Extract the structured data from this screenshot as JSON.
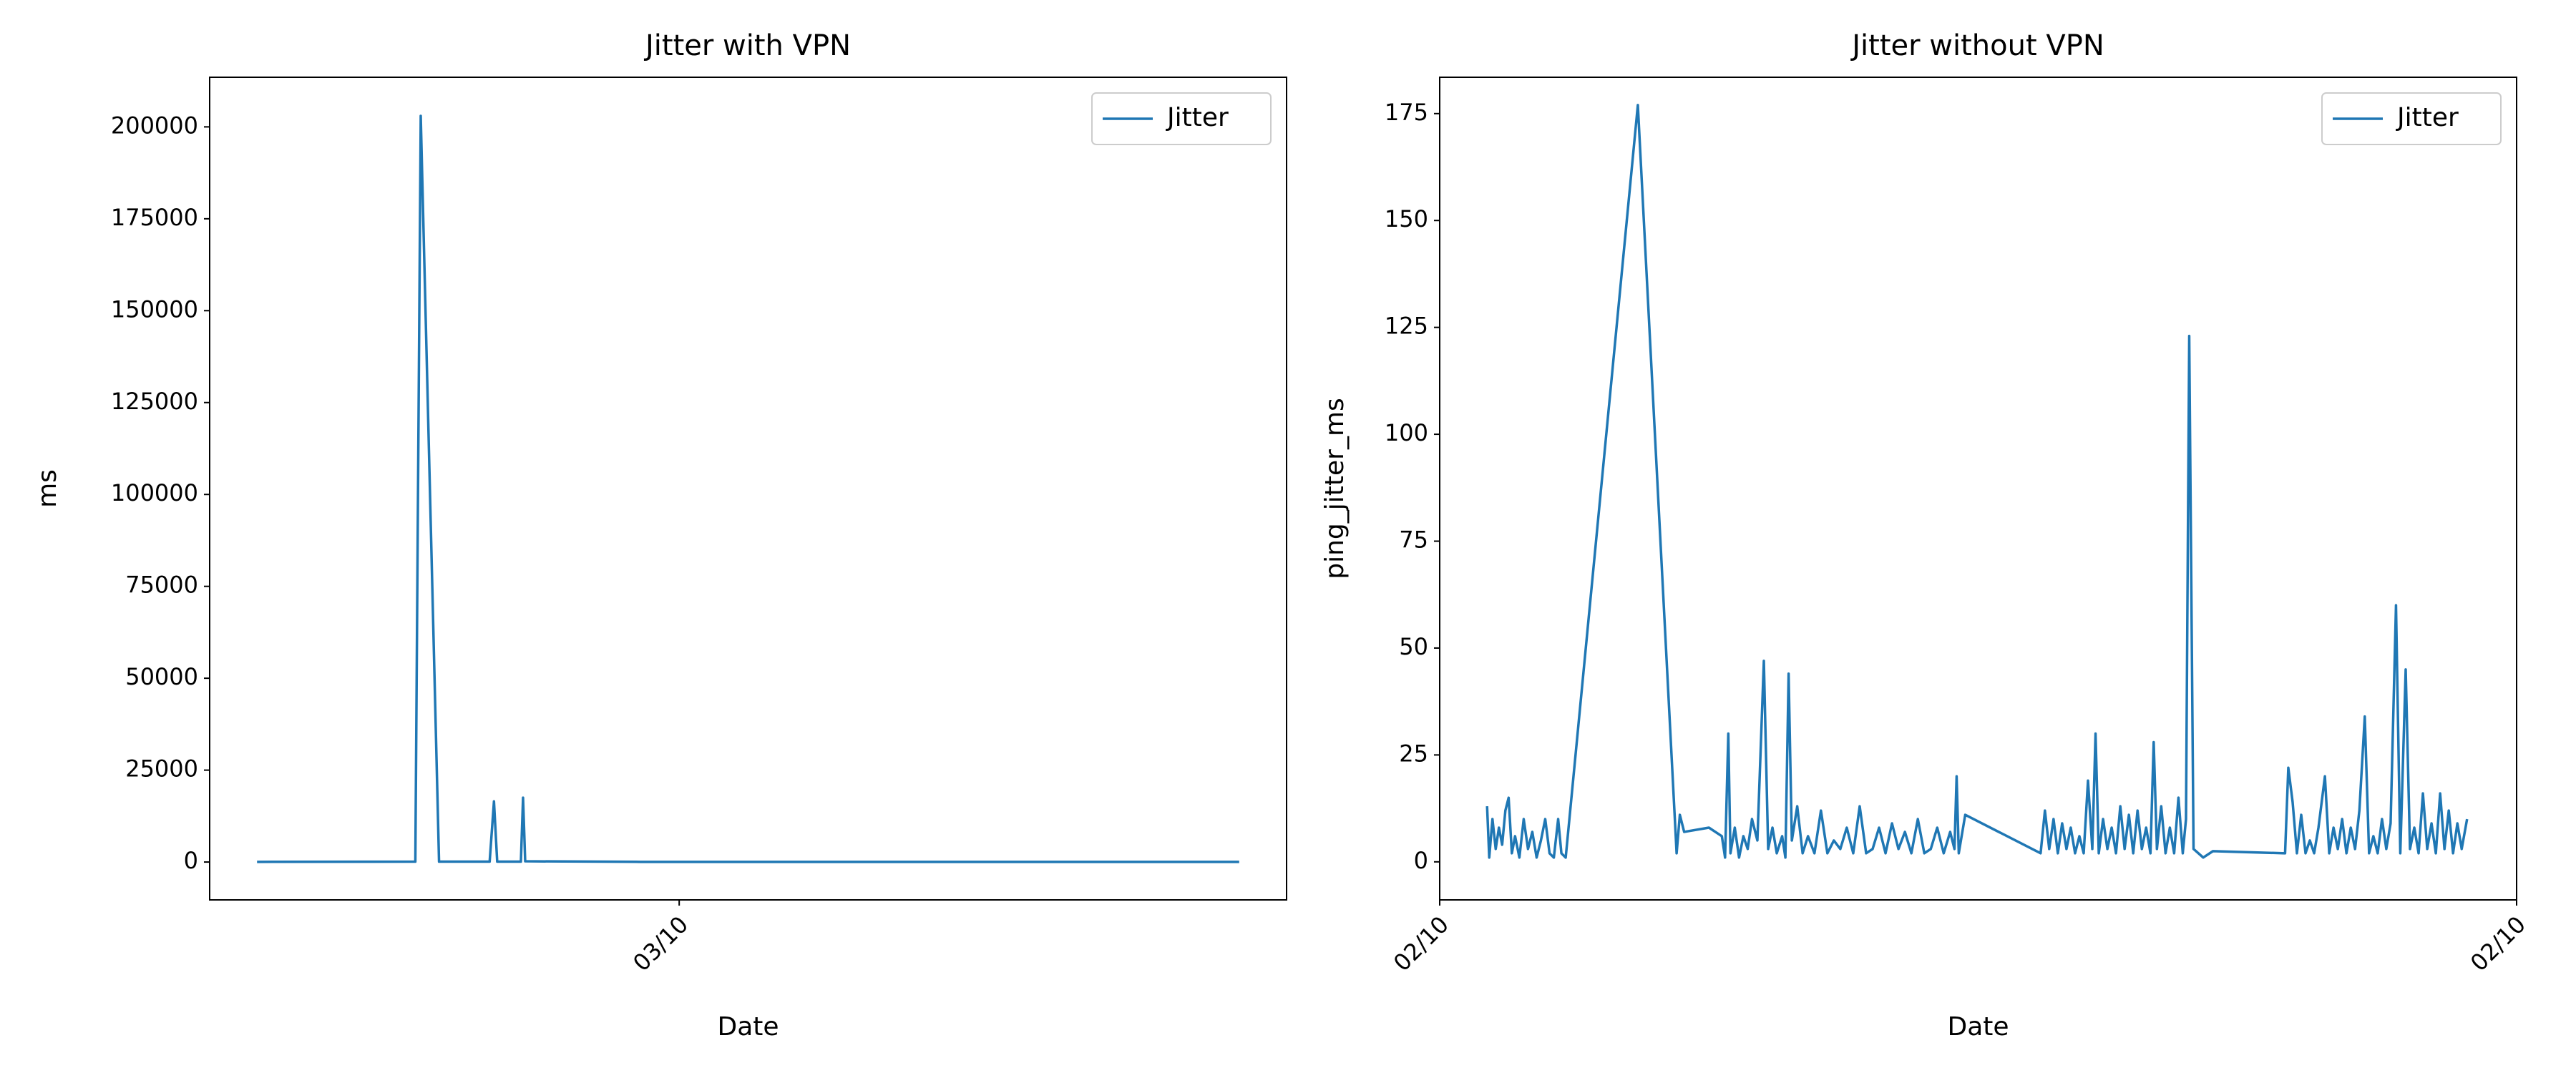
{
  "chart_data": [
    {
      "type": "line",
      "title": "Jitter with VPN",
      "xlabel": "Date",
      "ylabel": "ms",
      "x": [
        4.4,
        15,
        19.1,
        19.6,
        21.3,
        26.0,
        26.4,
        26.7,
        28.9,
        29.1,
        29.3,
        40,
        60,
        80,
        95.6
      ],
      "series": [
        {
          "name": "Jitter",
          "color": "#1f77b4",
          "values": [
            50,
            80,
            100,
            203000,
            100,
            100,
            16500,
            100,
            100,
            17500,
            200,
            50,
            50,
            50,
            50
          ]
        }
      ],
      "xlim": [
        0,
        100
      ],
      "xticks": [
        {
          "value": 43.6,
          "label": "03/10"
        }
      ],
      "ylim": [
        -10300,
        213500
      ],
      "yticks": [
        0,
        25000,
        50000,
        75000,
        100000,
        125000,
        150000,
        175000,
        200000
      ],
      "legend": "upper right"
    },
    {
      "type": "line",
      "title": "Jitter without VPN",
      "xlabel": "Date",
      "ylabel": "ping_jitter_ms",
      "x": [
        4.4,
        4.6,
        4.9,
        5.2,
        5.5,
        5.8,
        6.1,
        6.4,
        6.7,
        7.0,
        7.4,
        7.8,
        8.2,
        8.6,
        9.0,
        9.4,
        9.8,
        10.2,
        10.6,
        11.0,
        11.3,
        11.7,
        18.4,
        22.0,
        22.3,
        22.7,
        25.0,
        26.2,
        26.5,
        26.8,
        27.0,
        27.4,
        27.8,
        28.2,
        28.6,
        29.0,
        29.5,
        30.1,
        30.5,
        30.9,
        31.3,
        31.8,
        32.1,
        32.4,
        32.7,
        33.2,
        33.7,
        34.2,
        34.8,
        35.4,
        36.0,
        36.6,
        37.2,
        37.8,
        38.4,
        39.0,
        39.6,
        40.2,
        40.8,
        41.4,
        42.0,
        42.6,
        43.2,
        43.8,
        44.4,
        45.0,
        45.6,
        46.2,
        46.8,
        47.4,
        47.8,
        48.0,
        48.2,
        48.8,
        55.8,
        56.2,
        56.6,
        57.0,
        57.4,
        57.8,
        58.2,
        58.6,
        59.0,
        59.4,
        59.8,
        60.2,
        60.6,
        60.9,
        61.2,
        61.6,
        62.0,
        62.4,
        62.8,
        63.2,
        63.6,
        64.0,
        64.4,
        64.8,
        65.2,
        65.6,
        66.0,
        66.3,
        66.6,
        67.0,
        67.4,
        67.8,
        68.2,
        68.6,
        69.0,
        69.3,
        69.6,
        70.0,
        70.9,
        71.8,
        78.5,
        78.8,
        79.2,
        79.6,
        80.0,
        80.4,
        80.8,
        81.2,
        81.6,
        82.2,
        82.6,
        83.0,
        83.4,
        83.8,
        84.2,
        84.6,
        85.0,
        85.4,
        85.9,
        86.3,
        86.7,
        87.1,
        87.5,
        87.9,
        88.3,
        88.8,
        89.2,
        89.7,
        90.1,
        90.5,
        90.9,
        91.3,
        91.7,
        92.1,
        92.5,
        92.9,
        93.3,
        93.7,
        94.1,
        94.5,
        94.9,
        95.4
      ],
      "series": [
        {
          "name": "Jitter",
          "color": "#1f77b4",
          "values": [
            13,
            1,
            10,
            3,
            8,
            4,
            12,
            15,
            2,
            6,
            1,
            10,
            3,
            7,
            1,
            5,
            10,
            2,
            1,
            10,
            2,
            1,
            177,
            2,
            11,
            7,
            8,
            6,
            1,
            30,
            2,
            8,
            1,
            6,
            3,
            10,
            5,
            47,
            3,
            8,
            2,
            6,
            1,
            44,
            5,
            13,
            2,
            6,
            2,
            12,
            2,
            5,
            3,
            8,
            2,
            13,
            2,
            3,
            8,
            2,
            9,
            3,
            7,
            2,
            10,
            2,
            3,
            8,
            2,
            7,
            3,
            20,
            2,
            11,
            2,
            12,
            3,
            10,
            2,
            9,
            3,
            8,
            2,
            6,
            2,
            19,
            3,
            30,
            2,
            10,
            3,
            8,
            2,
            13,
            3,
            11,
            2,
            12,
            3,
            8,
            2,
            28,
            3,
            13,
            2,
            8,
            2,
            15,
            2,
            10,
            123,
            3,
            1,
            2.5,
            2,
            22,
            14,
            2,
            11,
            2,
            5,
            2,
            8,
            20,
            2,
            8,
            3,
            10,
            2,
            8,
            3,
            12,
            34,
            2,
            6,
            2,
            10,
            3,
            9,
            60,
            2,
            45,
            3,
            8,
            2,
            16,
            3,
            9,
            2,
            16,
            3,
            12,
            2,
            9,
            3,
            10
          ]
        }
      ],
      "xlim": [
        0,
        100
      ],
      "xticks": [
        {
          "value": 0,
          "label": "02/10"
        },
        {
          "value": 100,
          "label": "02/10"
        }
      ],
      "ylim": [
        -8.9,
        183.5
      ],
      "yticks": [
        0,
        25,
        50,
        75,
        100,
        125,
        150,
        175
      ],
      "legend": "upper right"
    }
  ]
}
